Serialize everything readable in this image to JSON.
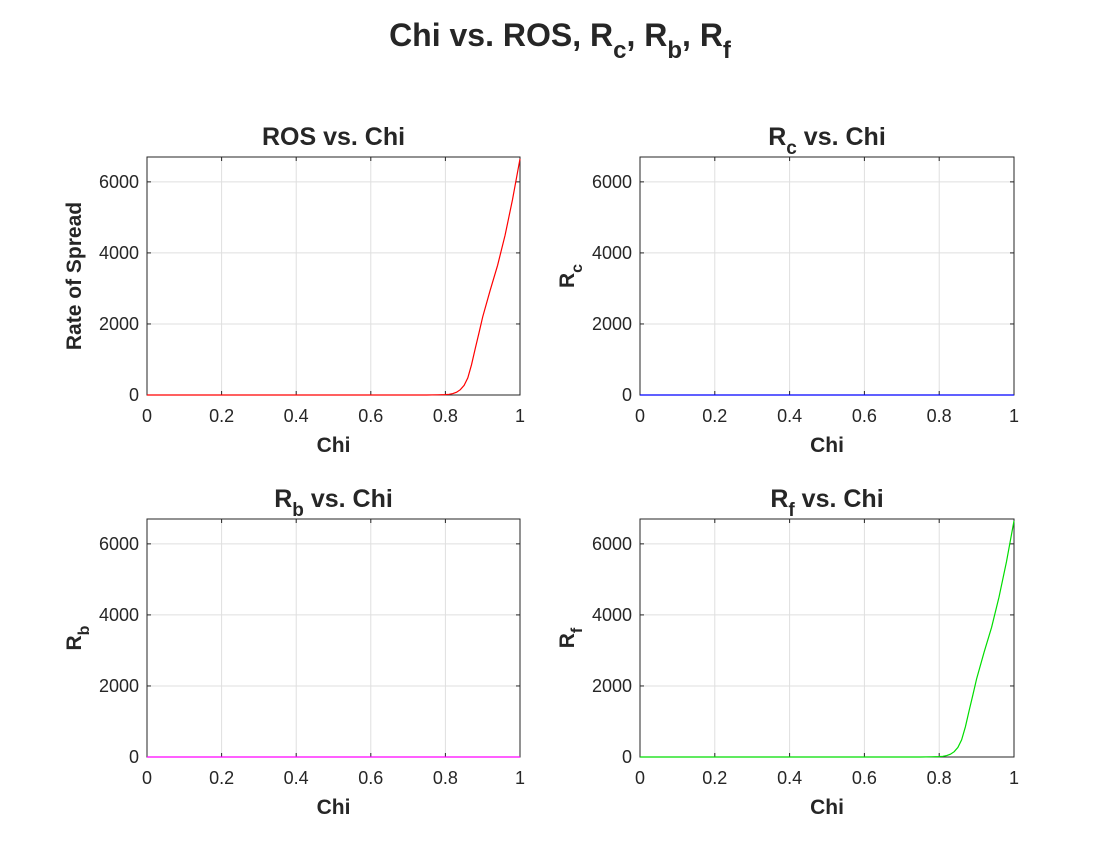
{
  "figure": {
    "title": {
      "base1": "Chi vs. ROS, R",
      "sub1": "c",
      "sep1": ", R",
      "sub2": "b",
      "sep2": ", R",
      "sub3": "f"
    }
  },
  "chart_data": [
    {
      "type": "line",
      "title": {
        "base": "ROS vs. Chi",
        "sub": "",
        "tail": ""
      },
      "xlabel": "Chi",
      "ylabel": {
        "base": "Rate of Spread",
        "sub": ""
      },
      "xlim": [
        0,
        1
      ],
      "ylim": [
        0,
        6700
      ],
      "xticks": [
        "0",
        "0.2",
        "0.4",
        "0.6",
        "0.8",
        "1"
      ],
      "yticks": [
        "0",
        "2000",
        "4000",
        "6000"
      ],
      "grid": true,
      "color": "#ff0000",
      "x": [
        0,
        0.1,
        0.2,
        0.3,
        0.4,
        0.5,
        0.6,
        0.7,
        0.75,
        0.78,
        0.8,
        0.81,
        0.82,
        0.83,
        0.84,
        0.85,
        0.86,
        0.87,
        0.88,
        0.89,
        0.9,
        0.92,
        0.94,
        0.96,
        0.98,
        1.0
      ],
      "y": [
        0,
        0,
        0,
        0,
        0,
        0,
        0,
        0,
        0,
        5,
        10,
        20,
        40,
        80,
        150,
        270,
        480,
        850,
        1300,
        1750,
        2200,
        2950,
        3650,
        4500,
        5500,
        6650
      ]
    },
    {
      "type": "line",
      "title": {
        "base": "R",
        "sub": "c",
        "tail": " vs. Chi"
      },
      "xlabel": "Chi",
      "ylabel": {
        "base": "R",
        "sub": "c"
      },
      "xlim": [
        0,
        1
      ],
      "ylim": [
        0,
        6700
      ],
      "xticks": [
        "0",
        "0.2",
        "0.4",
        "0.6",
        "0.8",
        "1"
      ],
      "yticks": [
        "0",
        "2000",
        "4000",
        "6000"
      ],
      "grid": true,
      "color": "#0000ff",
      "x": [
        0,
        1
      ],
      "y": [
        0,
        0
      ]
    },
    {
      "type": "line",
      "title": {
        "base": "R",
        "sub": "b",
        "tail": " vs. Chi"
      },
      "xlabel": "Chi",
      "ylabel": {
        "base": "R",
        "sub": "b"
      },
      "xlim": [
        0,
        1
      ],
      "ylim": [
        0,
        6700
      ],
      "xticks": [
        "0",
        "0.2",
        "0.4",
        "0.6",
        "0.8",
        "1"
      ],
      "yticks": [
        "0",
        "2000",
        "4000",
        "6000"
      ],
      "grid": true,
      "color": "#ff00ff",
      "x": [
        0,
        1
      ],
      "y": [
        0,
        0
      ]
    },
    {
      "type": "line",
      "title": {
        "base": "R",
        "sub": "f",
        "tail": " vs. Chi"
      },
      "xlabel": "Chi",
      "ylabel": {
        "base": "R",
        "sub": "f"
      },
      "xlim": [
        0,
        1
      ],
      "ylim": [
        0,
        6700
      ],
      "xticks": [
        "0",
        "0.2",
        "0.4",
        "0.6",
        "0.8",
        "1"
      ],
      "yticks": [
        "0",
        "2000",
        "4000",
        "6000"
      ],
      "grid": true,
      "color": "#00dd00",
      "x": [
        0,
        0.1,
        0.2,
        0.3,
        0.4,
        0.5,
        0.6,
        0.7,
        0.75,
        0.78,
        0.8,
        0.81,
        0.82,
        0.83,
        0.84,
        0.85,
        0.86,
        0.87,
        0.88,
        0.89,
        0.9,
        0.92,
        0.94,
        0.96,
        0.98,
        1.0
      ],
      "y": [
        0,
        0,
        0,
        0,
        0,
        0,
        0,
        0,
        0,
        5,
        10,
        20,
        40,
        80,
        150,
        270,
        480,
        850,
        1300,
        1750,
        2200,
        2950,
        3650,
        4500,
        5500,
        6650
      ]
    }
  ]
}
